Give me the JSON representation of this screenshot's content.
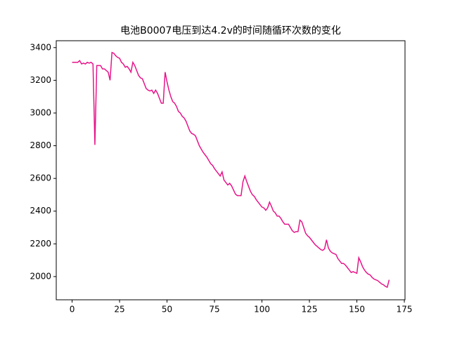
{
  "chart_data": {
    "type": "line",
    "title": "电池B0007电压到达4.2v的时间随循环次数的变化",
    "x": [
      0,
      1,
      2,
      3,
      4,
      5,
      6,
      7,
      8,
      9,
      10,
      11,
      12,
      13,
      14,
      15,
      16,
      17,
      18,
      19,
      20,
      21,
      22,
      23,
      24,
      25,
      26,
      27,
      28,
      29,
      30,
      31,
      32,
      33,
      34,
      35,
      36,
      37,
      38,
      39,
      40,
      41,
      42,
      43,
      44,
      45,
      46,
      47,
      48,
      49,
      50,
      51,
      52,
      53,
      54,
      55,
      56,
      57,
      58,
      59,
      60,
      61,
      62,
      63,
      64,
      65,
      66,
      67,
      68,
      69,
      70,
      71,
      72,
      73,
      74,
      75,
      76,
      77,
      78,
      79,
      80,
      81,
      82,
      83,
      84,
      85,
      86,
      87,
      88,
      89,
      90,
      91,
      92,
      93,
      94,
      95,
      96,
      97,
      98,
      99,
      100,
      101,
      102,
      103,
      104,
      105,
      106,
      107,
      108,
      109,
      110,
      111,
      112,
      113,
      114,
      115,
      116,
      117,
      118,
      119,
      120,
      121,
      122,
      123,
      124,
      125,
      126,
      127,
      128,
      129,
      130,
      131,
      132,
      133,
      134,
      135,
      136,
      137,
      138,
      139,
      140,
      141,
      142,
      143,
      144,
      145,
      146,
      147,
      148,
      149,
      150,
      151,
      152,
      153,
      154,
      155,
      156,
      157,
      158,
      159,
      160,
      161,
      162,
      163,
      164,
      165,
      166,
      167
    ],
    "series": [
      {
        "color": "#e6158a",
        "values": [
          3310,
          3310,
          3310,
          3310,
          3320,
          3300,
          3305,
          3300,
          3310,
          3305,
          3310,
          3300,
          2805,
          3290,
          3290,
          3290,
          3270,
          3270,
          3260,
          3250,
          3200,
          3370,
          3365,
          3350,
          3340,
          3335,
          3310,
          3300,
          3280,
          3285,
          3270,
          3250,
          3310,
          3290,
          3260,
          3230,
          3215,
          3210,
          3180,
          3150,
          3140,
          3135,
          3140,
          3120,
          3140,
          3120,
          3090,
          3060,
          3060,
          3250,
          3190,
          3140,
          3100,
          3070,
          3060,
          3040,
          3010,
          3000,
          2980,
          2970,
          2950,
          2920,
          2890,
          2875,
          2870,
          2860,
          2830,
          2800,
          2780,
          2760,
          2745,
          2730,
          2710,
          2690,
          2680,
          2660,
          2645,
          2630,
          2615,
          2640,
          2590,
          2575,
          2560,
          2570,
          2555,
          2530,
          2505,
          2495,
          2495,
          2495,
          2580,
          2615,
          2580,
          2550,
          2520,
          2500,
          2490,
          2470,
          2455,
          2440,
          2425,
          2420,
          2405,
          2420,
          2455,
          2430,
          2400,
          2390,
          2370,
          2370,
          2355,
          2335,
          2320,
          2320,
          2320,
          2300,
          2280,
          2270,
          2275,
          2275,
          2345,
          2335,
          2300,
          2265,
          2250,
          2240,
          2225,
          2210,
          2195,
          2185,
          2175,
          2165,
          2160,
          2170,
          2225,
          2175,
          2155,
          2145,
          2140,
          2135,
          2110,
          2095,
          2080,
          2080,
          2070,
          2055,
          2040,
          2025,
          2030,
          2025,
          2020,
          2115,
          2090,
          2060,
          2040,
          2025,
          2015,
          2010,
          1995,
          1985,
          1980,
          1975,
          1965,
          1955,
          1950,
          1940,
          1935,
          1980
        ]
      }
    ],
    "xlim": [
      -8.35,
      175.35
    ],
    "ylim": [
      1858,
      3442
    ],
    "xticks": [
      0,
      25,
      50,
      75,
      100,
      125,
      150,
      175
    ],
    "yticks": [
      2000,
      2200,
      2400,
      2600,
      2800,
      3000,
      3200,
      3400
    ]
  }
}
